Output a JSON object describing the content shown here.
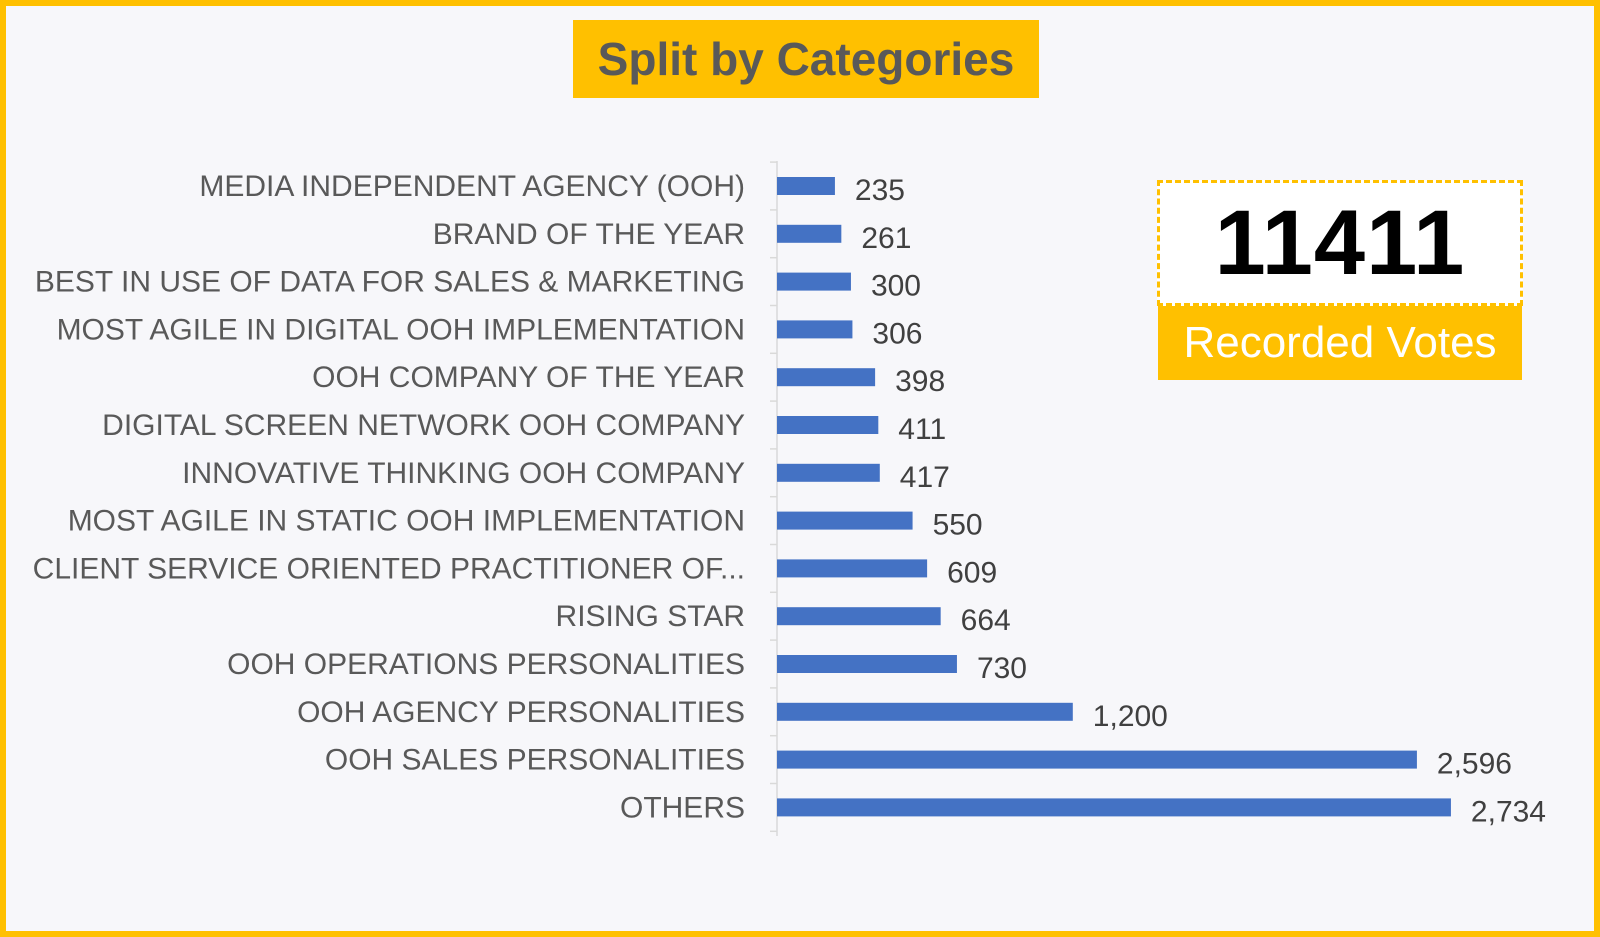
{
  "chart_data": {
    "type": "bar",
    "orientation": "horizontal",
    "title": "Split by Categories",
    "categories": [
      "MEDIA INDEPENDENT AGENCY (OOH)",
      "BRAND OF THE YEAR",
      "BEST IN USE OF DATA FOR SALES & MARKETING",
      "MOST AGILE IN DIGITAL OOH IMPLEMENTATION",
      "OOH COMPANY OF THE YEAR",
      "DIGITAL SCREEN NETWORK OOH COMPANY",
      "INNOVATIVE THINKING OOH COMPANY",
      "MOST AGILE IN STATIC OOH IMPLEMENTATION",
      "CLIENT SERVICE ORIENTED PRACTITIONER OF...",
      "RISING STAR",
      "OOH OPERATIONS PERSONALITIES",
      "OOH AGENCY PERSONALITIES",
      "OOH SALES PERSONALITIES",
      "OTHERS"
    ],
    "values": [
      235,
      261,
      300,
      306,
      398,
      411,
      417,
      550,
      609,
      664,
      730,
      1200,
      2596,
      2734
    ],
    "value_labels": [
      "235",
      "261",
      "300",
      "306",
      "398",
      "411",
      "417",
      "550",
      "609",
      "664",
      "730",
      "1,200",
      "2,596",
      "2,734"
    ],
    "xlim": [
      0,
      2800
    ],
    "grid": false,
    "bar_color": "#4472c4"
  },
  "summary": {
    "total_votes": "11411",
    "total_label": "Recorded Votes"
  },
  "colors": {
    "accent": "#ffc000",
    "bar": "#4472c4",
    "text": "#595959"
  }
}
